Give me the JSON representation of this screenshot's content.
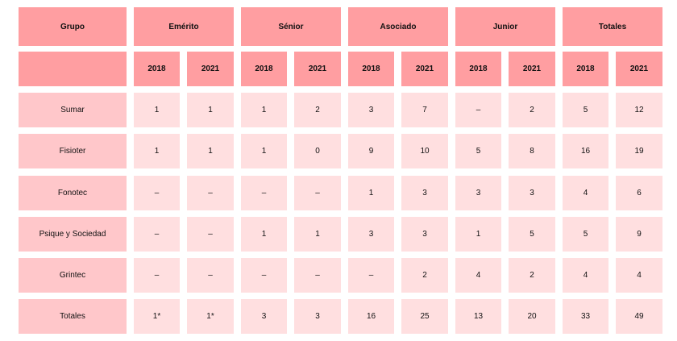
{
  "table": {
    "groups": [
      {
        "label": "Grupo"
      },
      {
        "label": "Emérito"
      },
      {
        "label": "Sénior"
      },
      {
        "label": "Asociado"
      },
      {
        "label": "Junior"
      },
      {
        "label": "Totales"
      }
    ],
    "years": [
      "2018",
      "2021",
      "2018",
      "2021",
      "2018",
      "2021",
      "2018",
      "2021",
      "2018",
      "2021"
    ],
    "rows": [
      {
        "name": "Sumar",
        "values": [
          "1",
          "1",
          "1",
          "2",
          "3",
          "7",
          "–",
          "2",
          "5",
          "12"
        ]
      },
      {
        "name": "Fisioter",
        "values": [
          "1",
          "1",
          "1",
          "0",
          "9",
          "10",
          "5",
          "8",
          "16",
          "19"
        ]
      },
      {
        "name": "Fonotec",
        "values": [
          "–",
          "–",
          "–",
          "–",
          "1",
          "3",
          "3",
          "3",
          "4",
          "6"
        ]
      },
      {
        "name": "Psique y Sociedad",
        "values": [
          "–",
          "–",
          "1",
          "1",
          "3",
          "3",
          "1",
          "5",
          "5",
          "9"
        ]
      },
      {
        "name": "Grintec",
        "values": [
          "–",
          "–",
          "–",
          "–",
          "–",
          "2",
          "4",
          "2",
          "4",
          "4"
        ]
      },
      {
        "name": "Totales",
        "values": [
          "1*",
          "1*",
          "3",
          "3",
          "16",
          "25",
          "13",
          "20",
          "33",
          "49"
        ]
      }
    ]
  }
}
